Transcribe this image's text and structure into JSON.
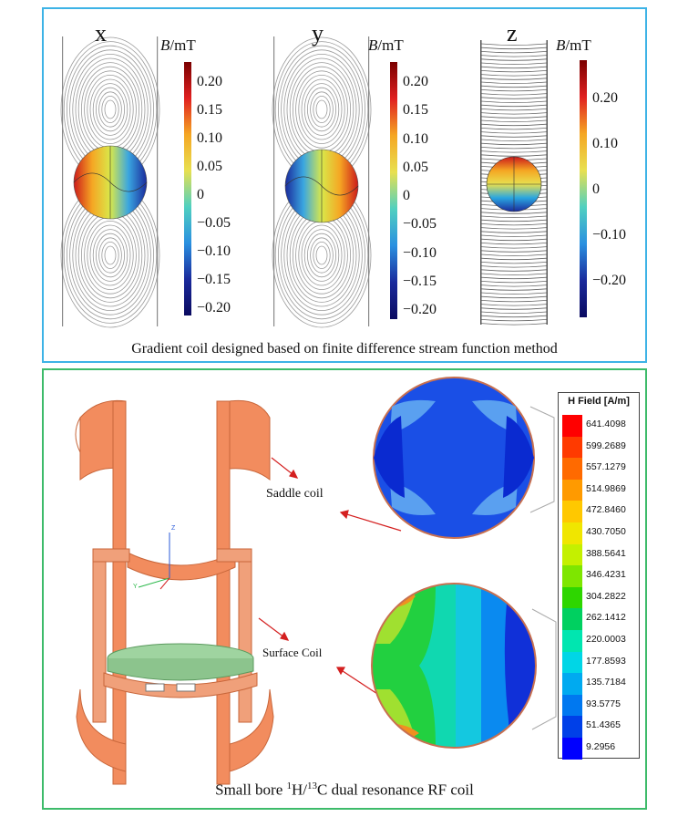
{
  "top": {
    "caption": "Gradient coil designed based on finite difference stream function method",
    "unit_label_italic": "B",
    "unit_label_rest": "/mT",
    "coils": [
      {
        "label": "x",
        "ticks": [
          "0.20",
          "0.15",
          "0.10",
          "0.05",
          "0",
          "−0.05",
          "−0.10",
          "−0.15",
          "−0.20"
        ]
      },
      {
        "label": "y",
        "ticks": [
          "0.20",
          "0.15",
          "0.10",
          "0.05",
          "0",
          "−0.05",
          "−0.10",
          "−0.15",
          "−0.20"
        ]
      },
      {
        "label": "z",
        "ticks": [
          "0.20",
          "0.10",
          "0",
          "−0.10",
          "−0.20"
        ]
      }
    ]
  },
  "bottom": {
    "caption_pre": "Small bore ",
    "caption_sup1": "1",
    "caption_mid": "H/",
    "caption_sup2": "13",
    "caption_post": "C dual resonance RF coil",
    "saddle_label": "Saddle coil",
    "surface_label": "Surface Coil",
    "axis_labels": {
      "z": "Z",
      "y": "Y"
    },
    "legend": {
      "title": "H Field [A/m]",
      "values": [
        "641.4098",
        "599.2689",
        "557.1279",
        "514.9869",
        "472.8460",
        "430.7050",
        "388.5641",
        "346.4231",
        "304.2822",
        "262.1412",
        "220.0003",
        "177.8593",
        "135.7184",
        "93.5775",
        "51.4365",
        "9.2956"
      ],
      "colors": [
        "#ff0000",
        "#ff3a00",
        "#ff6a00",
        "#ff9a00",
        "#ffc800",
        "#f0e600",
        "#c4f000",
        "#7ee600",
        "#2ed600",
        "#00d060",
        "#00e6b0",
        "#00d6e6",
        "#00aaf0",
        "#0078f0",
        "#0040e8",
        "#0000ff"
      ]
    },
    "colors": {
      "coil": "#f28c5e",
      "coil_dark": "#c8663a",
      "plate": "#9fd4a0",
      "arrow": "#d42020"
    }
  }
}
